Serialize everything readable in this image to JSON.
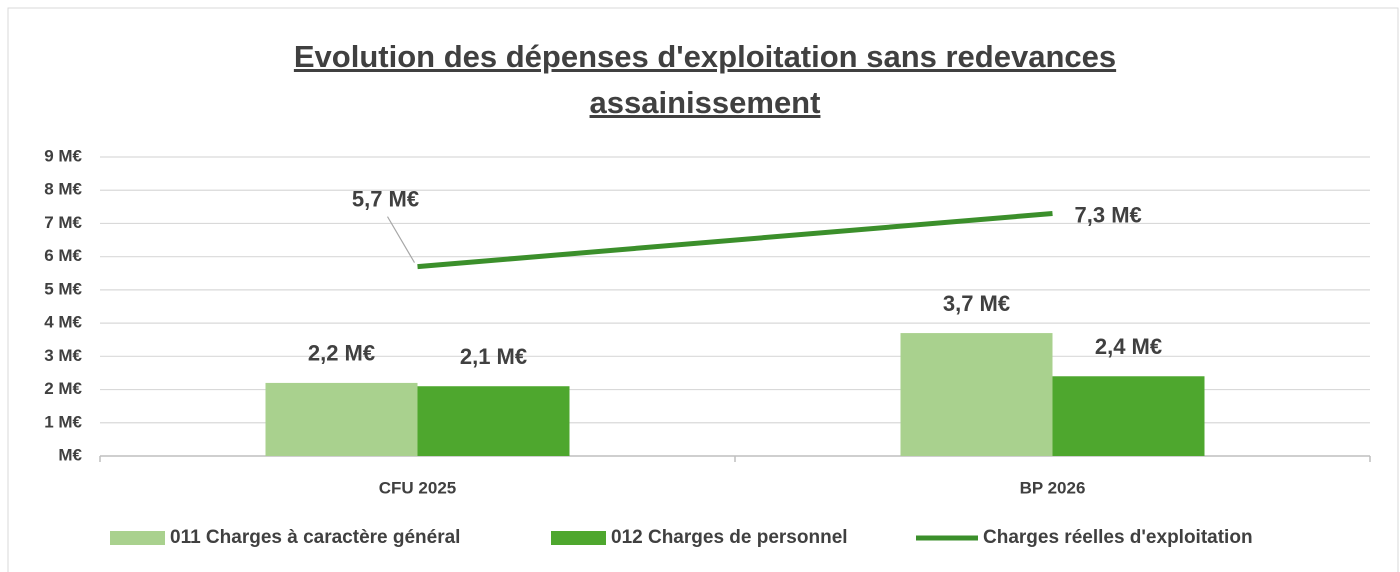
{
  "chart_data": {
    "type": "bar",
    "title": "Evolution des dépenses d'exploitation sans redevances assainissement",
    "categories": [
      "CFU 2025",
      "BP 2026"
    ],
    "series": [
      {
        "name": "011 Charges à caractère général",
        "color": "#a9d18e",
        "values": [
          2.2,
          3.7
        ],
        "value_labels": [
          "2,2  M€",
          "3,7  M€"
        ]
      },
      {
        "name": "012 Charges de personnel",
        "color": "#4ea72e",
        "values": [
          2.1,
          2.4
        ],
        "value_labels": [
          "2,1  M€",
          "2,4  M€"
        ]
      },
      {
        "name": "Charges réelles d'exploitation",
        "type": "line",
        "color": "#3b8f2b",
        "values": [
          5.7,
          7.3
        ],
        "value_labels": [
          "5,7  M€",
          "7,3  M€"
        ]
      }
    ],
    "ylim": [
      0,
      9
    ],
    "yticks": [
      {
        "value": 0,
        "label": "M€"
      },
      {
        "value": 1,
        "label": "1 M€"
      },
      {
        "value": 2,
        "label": "2 M€"
      },
      {
        "value": 3,
        "label": "3 M€"
      },
      {
        "value": 4,
        "label": "4 M€"
      },
      {
        "value": 5,
        "label": "5 M€"
      },
      {
        "value": 6,
        "label": "6 M€"
      },
      {
        "value": 7,
        "label": "7 M€"
      },
      {
        "value": 8,
        "label": "8 M€"
      },
      {
        "value": 9,
        "label": "9 M€"
      }
    ],
    "grid": true,
    "legend": "bottom"
  }
}
